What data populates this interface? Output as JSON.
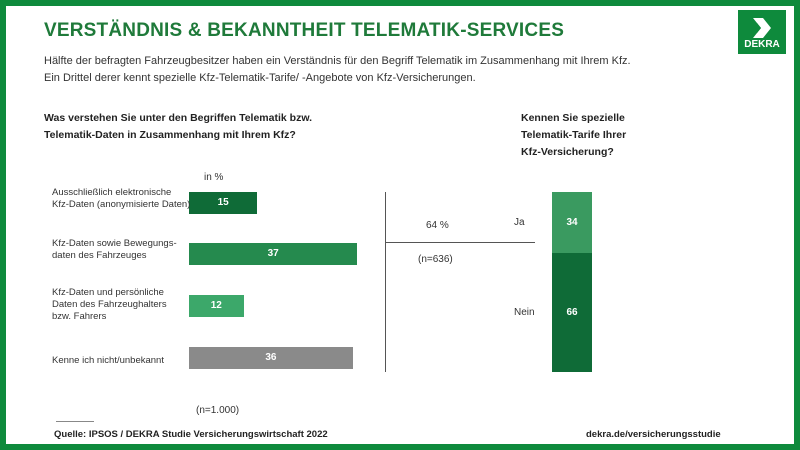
{
  "header": {
    "title": "VERSTÄNDNIS & BEKANNTHEIT TELEMATIK-SERVICES",
    "subtitle_line1": "Hälfte der befragten Fahrzeugbesitzer haben ein Verständnis für den Begriff Telematik im Zusammenhang mit Ihrem Kfz.",
    "subtitle_line2": "Ein Drittel derer kennt spezielle Kfz-Telematik-Tarife/ -Angebote von Kfz-Versicherungen."
  },
  "logo": {
    "text": "DEKRA"
  },
  "colors": {
    "frame": "#0e8a3c",
    "title": "#1f7a3a",
    "dark_green": "#0f6b37",
    "mid_green": "#258a4e",
    "light_green": "#3ca86a",
    "gray": "#8a8a8a"
  },
  "chart_data": [
    {
      "type": "bar",
      "orientation": "horizontal",
      "title_lines": [
        "Was verstehen Sie unter den Begriffen Telematik bzw.",
        "Telematik-Daten in Zusammenhang mit Ihrem Kfz?"
      ],
      "unit": "in %",
      "categories": [
        [
          "Ausschließlich elektronische",
          "Kfz-Daten (anonymisierte Daten)"
        ],
        [
          "Kfz-Daten sowie Bewegungs-",
          "daten des Fahrzeuges"
        ],
        [
          "Kfz-Daten und persönliche",
          "Daten des Fahrzeughalters",
          "bzw. Fahrers"
        ],
        [
          "Kenne ich nicht/unbekannt"
        ]
      ],
      "values": [
        15,
        37,
        12,
        36
      ],
      "bar_colors": [
        "#0f6b37",
        "#258a4e",
        "#3ca86a",
        "#8a8a8a"
      ],
      "sample_size": "(n=1.000)"
    },
    {
      "type": "bar",
      "orientation": "stacked-vertical",
      "title_lines": [
        "Kennen Sie spezielle",
        "Telematik-Tarife Ihrer",
        "Kfz-Versicherung?"
      ],
      "base_share": "64 %",
      "sample_size": "(n=636)",
      "categories": [
        "Ja",
        "Nein"
      ],
      "values": [
        34,
        66
      ],
      "bar_colors": [
        "#3a9a60",
        "#0f6b37"
      ]
    }
  ],
  "footer": {
    "source": "Quelle: IPSOS / DEKRA Studie Versicherungswirtschaft 2022",
    "url": "dekra.de/versicherungsstudie"
  }
}
